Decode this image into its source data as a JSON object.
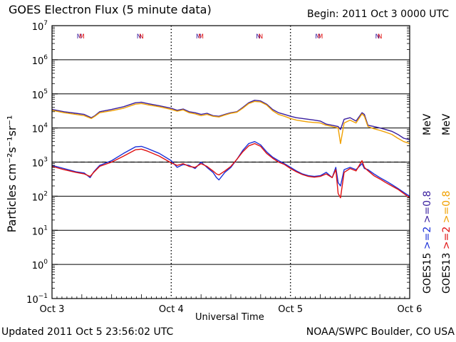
{
  "header": {
    "title": "GOES Electron Flux (5 minute data)",
    "begin": "Begin: 2011 Oct 3 0000 UTC"
  },
  "footer": {
    "updated": "Updated 2011 Oct  5 23:56:02 UTC",
    "credit": "NOAA/SWPC Boulder, CO USA"
  },
  "colors": {
    "goes15_gt08": "#3a1f9f",
    "goes13_gt08": "#f0a000",
    "goes15_gt2": "#1a2fd8",
    "goes13_gt2": "#e01010",
    "threshold": "#000000"
  },
  "legend": {
    "right_col1": [
      {
        "text": "GOES15",
        "color": "#000000"
      },
      {
        "text": ">=2",
        "color": "#1a2fd8"
      },
      {
        "text": ">=0.8",
        "color": "#3a1f9f"
      }
    ],
    "right_col2": [
      {
        "text": "GOES13",
        "color": "#000000"
      },
      {
        "text": ">=2",
        "color": "#e01010"
      },
      {
        "text": ">=0.8",
        "color": "#f0a000"
      }
    ],
    "unit": "MeV"
  },
  "chart_data": {
    "type": "line",
    "title": "GOES Electron Flux (5 minute data)",
    "xlabel": "Universal Time",
    "ylabel": "Particles cm⁻²s⁻¹sr⁻¹",
    "y_scale": "log",
    "ylim": [
      0.1,
      10000000
    ],
    "xlim": [
      0,
      3
    ],
    "x_unit": "days since 2011 Oct 3 0000 UTC",
    "x_ticks": [
      {
        "x": 0,
        "label": "Oct 3"
      },
      {
        "x": 1,
        "label": "Oct 4"
      },
      {
        "x": 2,
        "label": "Oct 5"
      },
      {
        "x": 3,
        "label": "Oct 6"
      }
    ],
    "y_ticks": [
      {
        "exp": 7,
        "label": "10",
        "sup": "7"
      },
      {
        "exp": 6,
        "label": "10",
        "sup": "6"
      },
      {
        "exp": 5,
        "label": "10",
        "sup": "5"
      },
      {
        "exp": 4,
        "label": "10",
        "sup": "4"
      },
      {
        "exp": 3,
        "label": "10",
        "sup": "3"
      },
      {
        "exp": 2,
        "label": "10",
        "sup": "2"
      },
      {
        "exp": 1,
        "label": "10",
        "sup": "1"
      },
      {
        "exp": 0,
        "label": "10",
        "sup": "0"
      },
      {
        "exp": -1,
        "label": "10",
        "sup": "−1"
      }
    ],
    "threshold": 1000,
    "markers": [
      {
        "x": 0.23,
        "label": "M",
        "color": "#3a1f9f"
      },
      {
        "x": 0.73,
        "label": "N",
        "color": "#3a1f9f"
      },
      {
        "x": 1.23,
        "label": "M",
        "color": "#3a1f9f"
      },
      {
        "x": 1.73,
        "label": "N",
        "color": "#3a1f9f"
      },
      {
        "x": 2.23,
        "label": "M",
        "color": "#3a1f9f"
      },
      {
        "x": 2.73,
        "label": "N",
        "color": "#3a1f9f"
      },
      {
        "x": 0.25,
        "label": "M",
        "color": "#e01010"
      },
      {
        "x": 0.75,
        "label": "N",
        "color": "#e01010"
      },
      {
        "x": 1.25,
        "label": "M",
        "color": "#e01010"
      },
      {
        "x": 1.75,
        "label": "N",
        "color": "#e01010"
      },
      {
        "x": 2.25,
        "label": "M",
        "color": "#e01010"
      },
      {
        "x": 2.75,
        "label": "N",
        "color": "#e01010"
      }
    ],
    "series": [
      {
        "name": "GOES15 >=0.8 MeV",
        "color": "#3a1f9f",
        "x": [
          0,
          0.1,
          0.2,
          0.27,
          0.33,
          0.36,
          0.4,
          0.5,
          0.6,
          0.7,
          0.75,
          0.8,
          0.9,
          1.0,
          1.05,
          1.1,
          1.15,
          1.2,
          1.25,
          1.3,
          1.35,
          1.4,
          1.45,
          1.5,
          1.55,
          1.6,
          1.65,
          1.7,
          1.75,
          1.8,
          1.85,
          1.9,
          1.95,
          2.0,
          2.05,
          2.1,
          2.15,
          2.2,
          2.25,
          2.3,
          2.35,
          2.4,
          2.42,
          2.45,
          2.5,
          2.55,
          2.6,
          2.62,
          2.65,
          2.7,
          2.75,
          2.8,
          2.85,
          2.9,
          2.95,
          3.0
        ],
        "y": [
          35000,
          30000,
          27000,
          25000,
          20000,
          23000,
          30000,
          35000,
          42000,
          55000,
          57000,
          52000,
          45000,
          38000,
          33000,
          36000,
          30000,
          28000,
          25000,
          27000,
          23000,
          22000,
          25000,
          28000,
          30000,
          40000,
          55000,
          65000,
          62000,
          50000,
          35000,
          28000,
          25000,
          22000,
          20000,
          19000,
          18000,
          17000,
          16000,
          13000,
          12000,
          11000,
          9000,
          18000,
          20000,
          16000,
          28000,
          25000,
          12000,
          11000,
          10000,
          9000,
          8000,
          6500,
          5000,
          4500
        ]
      },
      {
        "name": "GOES13 >=0.8 MeV",
        "color": "#f0a000",
        "x": [
          0,
          0.1,
          0.2,
          0.27,
          0.33,
          0.36,
          0.4,
          0.5,
          0.6,
          0.7,
          0.75,
          0.8,
          0.9,
          1.0,
          1.05,
          1.1,
          1.15,
          1.2,
          1.25,
          1.3,
          1.35,
          1.4,
          1.45,
          1.5,
          1.55,
          1.6,
          1.65,
          1.7,
          1.75,
          1.8,
          1.85,
          1.9,
          1.95,
          2.0,
          2.05,
          2.1,
          2.15,
          2.2,
          2.25,
          2.3,
          2.35,
          2.4,
          2.42,
          2.45,
          2.5,
          2.55,
          2.6,
          2.62,
          2.65,
          2.7,
          2.75,
          2.8,
          2.85,
          2.9,
          2.95,
          3.0
        ],
        "y": [
          33000,
          28000,
          25000,
          23000,
          19000,
          22000,
          28000,
          32000,
          38000,
          50000,
          52000,
          48000,
          42000,
          35000,
          31000,
          34000,
          28000,
          26000,
          23000,
          25000,
          22000,
          21000,
          24000,
          27000,
          29000,
          38000,
          52000,
          60000,
          58000,
          47000,
          32000,
          25000,
          22000,
          19000,
          17000,
          16000,
          15000,
          14500,
          14000,
          12000,
          11000,
          10000,
          3500,
          14000,
          17000,
          14000,
          26000,
          22000,
          11000,
          9500,
          8500,
          7500,
          6500,
          5000,
          4000,
          3500
        ]
      },
      {
        "name": "GOES15 >=2 MeV",
        "color": "#1a2fd8",
        "x": [
          0,
          0.1,
          0.2,
          0.27,
          0.32,
          0.35,
          0.4,
          0.5,
          0.6,
          0.7,
          0.75,
          0.8,
          0.9,
          1.0,
          1.05,
          1.1,
          1.15,
          1.2,
          1.25,
          1.3,
          1.35,
          1.38,
          1.4,
          1.45,
          1.5,
          1.55,
          1.6,
          1.65,
          1.7,
          1.75,
          1.8,
          1.85,
          1.9,
          1.95,
          2.0,
          2.05,
          2.1,
          2.15,
          2.2,
          2.25,
          2.3,
          2.35,
          2.38,
          2.4,
          2.42,
          2.45,
          2.5,
          2.55,
          2.6,
          2.62,
          2.65,
          2.7,
          2.75,
          2.8,
          2.85,
          2.9,
          2.95,
          3.0
        ],
        "y": [
          800,
          650,
          520,
          480,
          350,
          520,
          800,
          1100,
          1800,
          2800,
          2900,
          2500,
          1800,
          1100,
          700,
          850,
          800,
          650,
          1000,
          700,
          500,
          350,
          300,
          500,
          700,
          1200,
          2200,
          3500,
          4000,
          3200,
          2000,
          1400,
          1100,
          900,
          700,
          550,
          450,
          400,
          380,
          400,
          500,
          350,
          700,
          250,
          200,
          600,
          700,
          600,
          900,
          650,
          600,
          450,
          350,
          280,
          220,
          170,
          130,
          100
        ]
      },
      {
        "name": "GOES13 >=2 MeV",
        "color": "#e01010",
        "x": [
          0,
          0.1,
          0.2,
          0.27,
          0.32,
          0.35,
          0.4,
          0.5,
          0.6,
          0.7,
          0.75,
          0.8,
          0.9,
          1.0,
          1.05,
          1.1,
          1.15,
          1.2,
          1.25,
          1.3,
          1.35,
          1.38,
          1.4,
          1.45,
          1.5,
          1.55,
          1.6,
          1.65,
          1.7,
          1.75,
          1.8,
          1.85,
          1.9,
          1.95,
          2.0,
          2.05,
          2.1,
          2.15,
          2.2,
          2.25,
          2.3,
          2.35,
          2.38,
          2.4,
          2.42,
          2.45,
          2.5,
          2.55,
          2.6,
          2.62,
          2.65,
          2.7,
          2.75,
          2.8,
          2.85,
          2.9,
          2.95,
          3.0
        ],
        "y": [
          750,
          600,
          500,
          450,
          380,
          500,
          750,
          1000,
          1500,
          2300,
          2400,
          2100,
          1500,
          950,
          800,
          900,
          750,
          700,
          900,
          750,
          550,
          450,
          420,
          550,
          750,
          1200,
          2000,
          3000,
          3500,
          2900,
          1800,
          1300,
          1000,
          850,
          650,
          520,
          430,
          380,
          360,
          380,
          450,
          350,
          600,
          120,
          90,
          500,
          650,
          550,
          1100,
          700,
          560,
          400,
          320,
          250,
          200,
          160,
          120,
          90
        ]
      }
    ]
  }
}
